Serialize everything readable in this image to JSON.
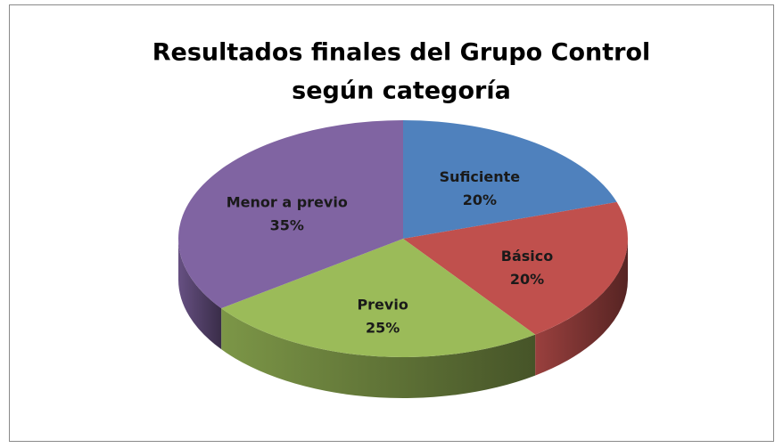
{
  "chart_data": {
    "type": "pie",
    "title": [
      "Resultados finales del Grupo Control",
      "según categoría"
    ],
    "categories": [
      "Suficiente",
      "Básico",
      "Previo",
      "Menor a previo"
    ],
    "values": [
      20,
      20,
      25,
      35
    ],
    "value_labels": [
      "20%",
      "20%",
      "25%",
      "35%"
    ],
    "colors": [
      "#4f81bd",
      "#c0504d",
      "#9bbb59",
      "#8064a2"
    ]
  }
}
